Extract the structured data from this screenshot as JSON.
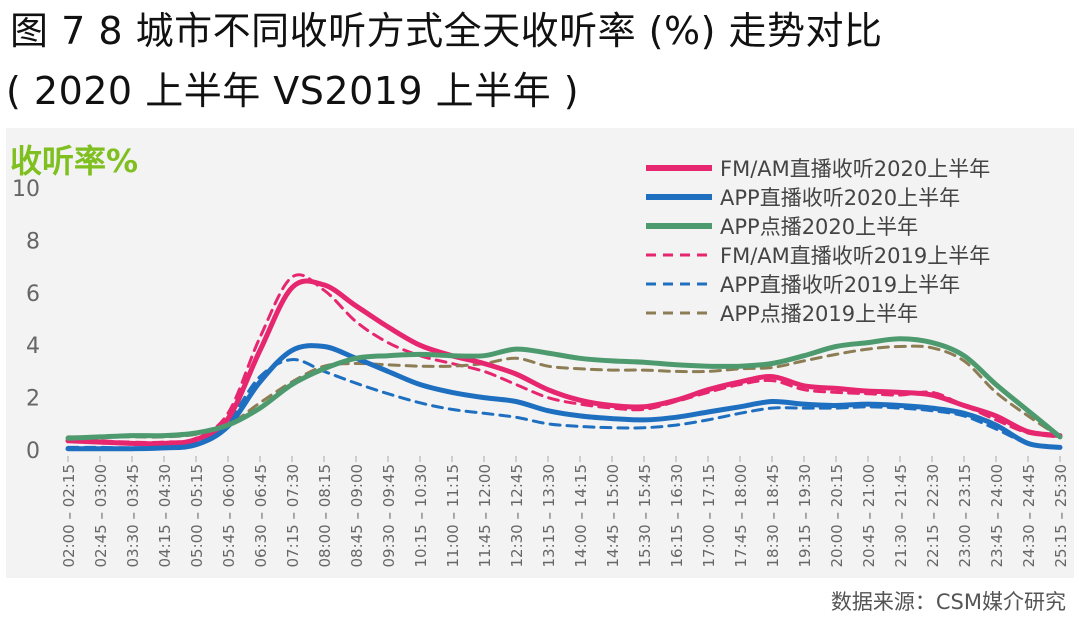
{
  "header": {
    "title": "图 7  8 城市不同收听方式全天收听率 (%) 走势对比",
    "subtitle": "( 2020 上半年 VS2019 上半年 )"
  },
  "source_note": "数据来源：CSM媒介研究",
  "colors": {
    "fm_am": "#e6266f",
    "app_live": "#1f6fc0",
    "app_vod": "#4e9a6f",
    "app_vod_2019": "#8c7d55",
    "ylabel": "#7fbf1f",
    "panel": "#f3f3f3"
  },
  "chart_data": {
    "type": "line",
    "ylabel": "收听率%",
    "ylim": [
      0,
      10
    ],
    "yticks": [
      0,
      2,
      4,
      6,
      8,
      10
    ],
    "grid": false,
    "legend_position": "top-right",
    "categories": [
      "02:00 – 02:15",
      "02:45 – 03:00",
      "03:30 – 03:45",
      "04:15 – 04:30",
      "05:00 – 05:15",
      "05:45 – 06:00",
      "06:30 – 06:45",
      "07:15 – 07:30",
      "08:00 – 08:15",
      "08:45 – 09:00",
      "09:30 – 09:45",
      "10:15 – 10:30",
      "11:00 – 11:15",
      "11:45 – 12:00",
      "12:30 – 12:45",
      "13:15 – 13:30",
      "14:00 – 14:15",
      "14:45 – 15:00",
      "15:30 – 15:45",
      "16:15 – 16:30",
      "17:00 – 17:15",
      "17:45 – 18:00",
      "18:30 – 18:45",
      "19:15 – 19:30",
      "20:00 – 20:15",
      "20:45 – 21:00",
      "21:30 – 21:45",
      "22:15 – 22:30",
      "23:00 – 23:15",
      "23:45 – 24:00",
      "24:30 – 24:45",
      "25:15 – 25:30"
    ],
    "series": [
      {
        "name": "FM/AM直播收听2020上半年",
        "color": "#e6266f",
        "dash": "solid",
        "values": [
          0.35,
          0.3,
          0.25,
          0.25,
          0.4,
          1.2,
          3.8,
          6.2,
          6.3,
          5.5,
          4.7,
          4.0,
          3.6,
          3.3,
          2.9,
          2.3,
          1.9,
          1.7,
          1.65,
          1.9,
          2.3,
          2.6,
          2.8,
          2.45,
          2.35,
          2.25,
          2.2,
          2.1,
          1.7,
          1.3,
          0.7,
          0.55
        ]
      },
      {
        "name": "APP直播收听2020上半年",
        "color": "#1f6fc0",
        "dash": "solid",
        "values": [
          0.05,
          0.05,
          0.05,
          0.08,
          0.2,
          0.9,
          2.6,
          3.8,
          3.95,
          3.5,
          3.0,
          2.5,
          2.2,
          2.0,
          1.85,
          1.5,
          1.3,
          1.2,
          1.15,
          1.25,
          1.45,
          1.65,
          1.85,
          1.75,
          1.7,
          1.75,
          1.7,
          1.6,
          1.4,
          0.95,
          0.25,
          0.1
        ]
      },
      {
        "name": "APP点播2020上半年",
        "color": "#4e9a6f",
        "dash": "solid",
        "values": [
          0.45,
          0.5,
          0.55,
          0.55,
          0.65,
          0.95,
          1.6,
          2.5,
          3.1,
          3.5,
          3.6,
          3.65,
          3.6,
          3.6,
          3.85,
          3.7,
          3.5,
          3.4,
          3.35,
          3.25,
          3.2,
          3.2,
          3.3,
          3.6,
          3.95,
          4.1,
          4.25,
          4.1,
          3.6,
          2.5,
          1.5,
          0.5
        ]
      },
      {
        "name": "FM/AM直播收听2019上半年",
        "color": "#e6266f",
        "dash": "dashed",
        "values": [
          0.4,
          0.35,
          0.3,
          0.3,
          0.45,
          1.4,
          4.3,
          6.6,
          6.1,
          4.9,
          4.1,
          3.6,
          3.3,
          3.0,
          2.5,
          2.0,
          1.75,
          1.6,
          1.55,
          1.85,
          2.2,
          2.5,
          2.65,
          2.3,
          2.2,
          2.15,
          2.1,
          2.2,
          1.7,
          1.15,
          0.65,
          0.5
        ]
      },
      {
        "name": "APP直播收听2019上半年",
        "color": "#1f6fc0",
        "dash": "dashed",
        "values": [
          0.1,
          0.1,
          0.08,
          0.1,
          0.25,
          1.1,
          2.8,
          3.45,
          3.0,
          2.55,
          2.15,
          1.8,
          1.55,
          1.4,
          1.25,
          1.0,
          0.9,
          0.85,
          0.85,
          0.95,
          1.15,
          1.4,
          1.6,
          1.6,
          1.6,
          1.65,
          1.6,
          1.5,
          1.3,
          0.8,
          0.25,
          0.1
        ]
      },
      {
        "name": "APP点播2019上半年",
        "color": "#8c7d55",
        "dash": "dashed",
        "values": [
          0.5,
          0.5,
          0.5,
          0.5,
          0.6,
          0.95,
          1.8,
          2.6,
          3.2,
          3.3,
          3.25,
          3.2,
          3.2,
          3.3,
          3.5,
          3.2,
          3.1,
          3.05,
          3.05,
          3.0,
          3.0,
          3.1,
          3.15,
          3.4,
          3.65,
          3.85,
          3.95,
          3.9,
          3.4,
          2.2,
          1.3,
          0.5
        ]
      }
    ]
  }
}
